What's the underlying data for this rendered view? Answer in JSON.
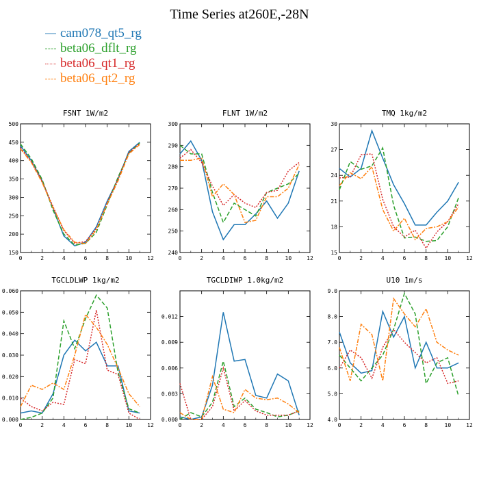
{
  "title": "Time Series at260E,-28N",
  "legend": [
    {
      "name": "cam078_qt5_rg",
      "color": "#1f77b4",
      "dash": "solid"
    },
    {
      "name": "beta06_dflt_rg",
      "color": "#2ca02c",
      "dash": "dashed"
    },
    {
      "name": "beta06_qt1_rg",
      "color": "#d62728",
      "dash": "dotted"
    },
    {
      "name": "beta06_qt2_rg",
      "color": "#ff7f0e",
      "dash": "dashdot"
    }
  ],
  "chart_data": [
    {
      "type": "line",
      "title": "FSNT  1W/m2",
      "x": [
        0,
        1,
        2,
        3,
        4,
        5,
        6,
        7,
        8,
        9,
        10,
        11
      ],
      "xlim": [
        0,
        12
      ],
      "xticks": [
        0,
        2,
        4,
        6,
        8,
        10,
        12
      ],
      "ylim": [
        150,
        500
      ],
      "yticks": [
        "150",
        "200",
        "250",
        "300",
        "350",
        "400",
        "450",
        "500"
      ],
      "series": [
        {
          "name": "cam078_qt5_rg",
          "values": [
            440,
            400,
            345,
            270,
            195,
            168,
            178,
            220,
            290,
            350,
            425,
            450
          ]
        },
        {
          "name": "beta06_dflt_rg",
          "values": [
            445,
            405,
            348,
            265,
            200,
            170,
            175,
            205,
            280,
            355,
            420,
            448
          ]
        },
        {
          "name": "beta06_qt1_rg",
          "values": [
            435,
            398,
            343,
            275,
            210,
            175,
            180,
            215,
            285,
            350,
            422,
            446
          ]
        },
        {
          "name": "beta06_qt2_rg",
          "values": [
            432,
            395,
            340,
            272,
            212,
            178,
            174,
            212,
            282,
            345,
            418,
            444
          ]
        }
      ]
    },
    {
      "type": "line",
      "title": "FLNT  1W/m2",
      "x": [
        0,
        1,
        2,
        3,
        4,
        5,
        6,
        7,
        8,
        9,
        10,
        11
      ],
      "xlim": [
        0,
        12
      ],
      "xticks": [
        0,
        2,
        4,
        6,
        8,
        10,
        12
      ],
      "ylim": [
        240,
        300
      ],
      "yticks": [
        "240",
        "250",
        "260",
        "270",
        "280",
        "290",
        "300"
      ],
      "series": [
        {
          "name": "cam078_qt5_rg",
          "values": [
            286,
            292,
            283,
            259,
            246,
            253,
            253,
            258,
            264,
            256,
            263,
            278
          ]
        },
        {
          "name": "beta06_dflt_rg",
          "values": [
            290,
            286,
            286,
            268,
            254,
            263,
            260,
            257,
            268,
            270,
            272,
            277
          ]
        },
        {
          "name": "beta06_qt1_rg",
          "values": [
            284,
            288,
            282,
            271,
            262,
            267,
            263,
            261,
            268,
            269,
            278,
            282
          ]
        },
        {
          "name": "beta06_qt2_rg",
          "values": [
            283,
            283,
            284,
            266,
            272,
            267,
            254,
            255,
            266,
            266,
            270,
            281
          ]
        }
      ]
    },
    {
      "type": "line",
      "title": "TMQ  1kg/m2",
      "x": [
        0,
        1,
        2,
        3,
        4,
        5,
        6,
        7,
        8,
        9,
        10,
        11
      ],
      "xlim": [
        0,
        12
      ],
      "xticks": [
        0,
        2,
        4,
        6,
        8,
        10,
        12
      ],
      "ylim": [
        15,
        30
      ],
      "yticks": [
        "15",
        "18",
        "21",
        "24",
        "27",
        "30"
      ],
      "series": [
        {
          "name": "cam078_qt5_rg",
          "values": [
            24.8,
            23.8,
            24.8,
            29.2,
            26.0,
            22.9,
            20.7,
            18.2,
            18.2,
            19.7,
            21.0,
            23.2
          ]
        },
        {
          "name": "beta06_dflt_rg",
          "values": [
            22.3,
            25.6,
            24.7,
            25.1,
            27.2,
            20.5,
            16.7,
            16.8,
            16.3,
            16.4,
            18.0,
            21.4
          ]
        },
        {
          "name": "beta06_qt1_rg",
          "values": [
            23.7,
            23.8,
            26.4,
            26.5,
            21.2,
            18.0,
            16.8,
            17.6,
            15.5,
            17.4,
            18.6,
            20.7
          ]
        },
        {
          "name": "beta06_qt2_rg",
          "values": [
            22.8,
            24.3,
            23.6,
            25.0,
            20.0,
            17.5,
            19.0,
            16.5,
            17.8,
            18.0,
            18.6,
            20.3
          ]
        }
      ]
    },
    {
      "type": "line",
      "title": "TGCLDLWP  1kg/m2",
      "x": [
        0,
        1,
        2,
        3,
        4,
        5,
        6,
        7,
        8,
        9,
        10,
        11
      ],
      "xlim": [
        0,
        12
      ],
      "xticks": [
        0,
        2,
        4,
        6,
        8,
        10,
        12
      ],
      "ylim": [
        0,
        0.06
      ],
      "yticks": [
        "0.000",
        "0.010",
        "0.020",
        "0.030",
        "0.040",
        "0.050",
        "0.060"
      ],
      "series": [
        {
          "name": "cam078_qt5_rg",
          "values": [
            0.003,
            0.004,
            0.003,
            0.012,
            0.03,
            0.037,
            0.032,
            0.036,
            0.025,
            0.025,
            0.004,
            0.003
          ]
        },
        {
          "name": "beta06_dflt_rg",
          "values": [
            0.0,
            0.001,
            0.003,
            0.01,
            0.046,
            0.033,
            0.047,
            0.058,
            0.052,
            0.022,
            0.005,
            0.003
          ]
        },
        {
          "name": "beta06_qt1_rg",
          "values": [
            0.01,
            0.006,
            0.004,
            0.008,
            0.007,
            0.028,
            0.026,
            0.051,
            0.023,
            0.021,
            0.003,
            0.0
          ]
        },
        {
          "name": "beta06_qt2_rg",
          "values": [
            0.006,
            0.016,
            0.014,
            0.017,
            0.014,
            0.03,
            0.049,
            0.043,
            0.035,
            0.024,
            0.012,
            0.006
          ]
        }
      ]
    },
    {
      "type": "line",
      "title": "TGCLDIWP  1.0kg/m2",
      "x": [
        0,
        1,
        2,
        3,
        4,
        5,
        6,
        7,
        8,
        9,
        10,
        11
      ],
      "xlim": [
        0,
        12
      ],
      "xticks": [
        0,
        2,
        4,
        6,
        8,
        10,
        12
      ],
      "ylim": [
        0,
        0.015
      ],
      "yticks": [
        "0.000",
        "0.003",
        "0.006",
        "0.009",
        "0.012"
      ],
      "series": [
        {
          "name": "cam078_qt5_rg",
          "values": [
            0.0003,
            0.0,
            0.0003,
            0.004,
            0.0125,
            0.0068,
            0.007,
            0.0028,
            0.0025,
            0.0053,
            0.0045,
            0.0005
          ]
        },
        {
          "name": "beta06_dflt_rg",
          "values": [
            0.0,
            0.0008,
            0.0003,
            0.002,
            0.0068,
            0.0015,
            0.0025,
            0.0012,
            0.0008,
            0.0003,
            0.0005,
            0.001
          ]
        },
        {
          "name": "beta06_qt1_rg",
          "values": [
            0.0042,
            0.0,
            0.0,
            0.0015,
            0.006,
            0.001,
            0.0022,
            0.001,
            0.0005,
            0.0005,
            0.0005,
            0.001
          ]
        },
        {
          "name": "beta06_qt2_rg",
          "values": [
            0.0008,
            0.0,
            0.0,
            0.005,
            0.0012,
            0.0008,
            0.0035,
            0.0025,
            0.0023,
            0.0025,
            0.0018,
            0.0008
          ]
        }
      ]
    },
    {
      "type": "line",
      "title": "U10  1m/s",
      "x": [
        0,
        1,
        2,
        3,
        4,
        5,
        6,
        7,
        8,
        9,
        10,
        11
      ],
      "xlim": [
        0,
        12
      ],
      "xticks": [
        0,
        2,
        4,
        6,
        8,
        10,
        12
      ],
      "ylim": [
        4,
        9
      ],
      "yticks": [
        "4.0",
        "5.0",
        "6.0",
        "7.0",
        "8.0",
        "9.0"
      ],
      "series": [
        {
          "name": "cam078_qt5_rg",
          "values": [
            7.4,
            6.2,
            5.8,
            5.9,
            8.2,
            7.2,
            8.0,
            6.0,
            7.0,
            6.0,
            6.0,
            6.2
          ]
        },
        {
          "name": "beta06_dflt_rg",
          "values": [
            6.5,
            6.0,
            5.5,
            6.0,
            6.5,
            7.5,
            8.9,
            8.1,
            5.4,
            6.2,
            6.4,
            4.9
          ]
        },
        {
          "name": "beta06_qt1_rg",
          "values": [
            6.0,
            6.7,
            6.4,
            5.6,
            6.8,
            7.5,
            7.0,
            6.6,
            6.2,
            6.4,
            5.4,
            5.5
          ]
        },
        {
          "name": "beta06_qt2_rg",
          "values": [
            6.8,
            5.5,
            7.7,
            7.3,
            5.5,
            8.7,
            8.1,
            7.6,
            8.3,
            7.0,
            6.7,
            6.5
          ]
        }
      ]
    }
  ]
}
